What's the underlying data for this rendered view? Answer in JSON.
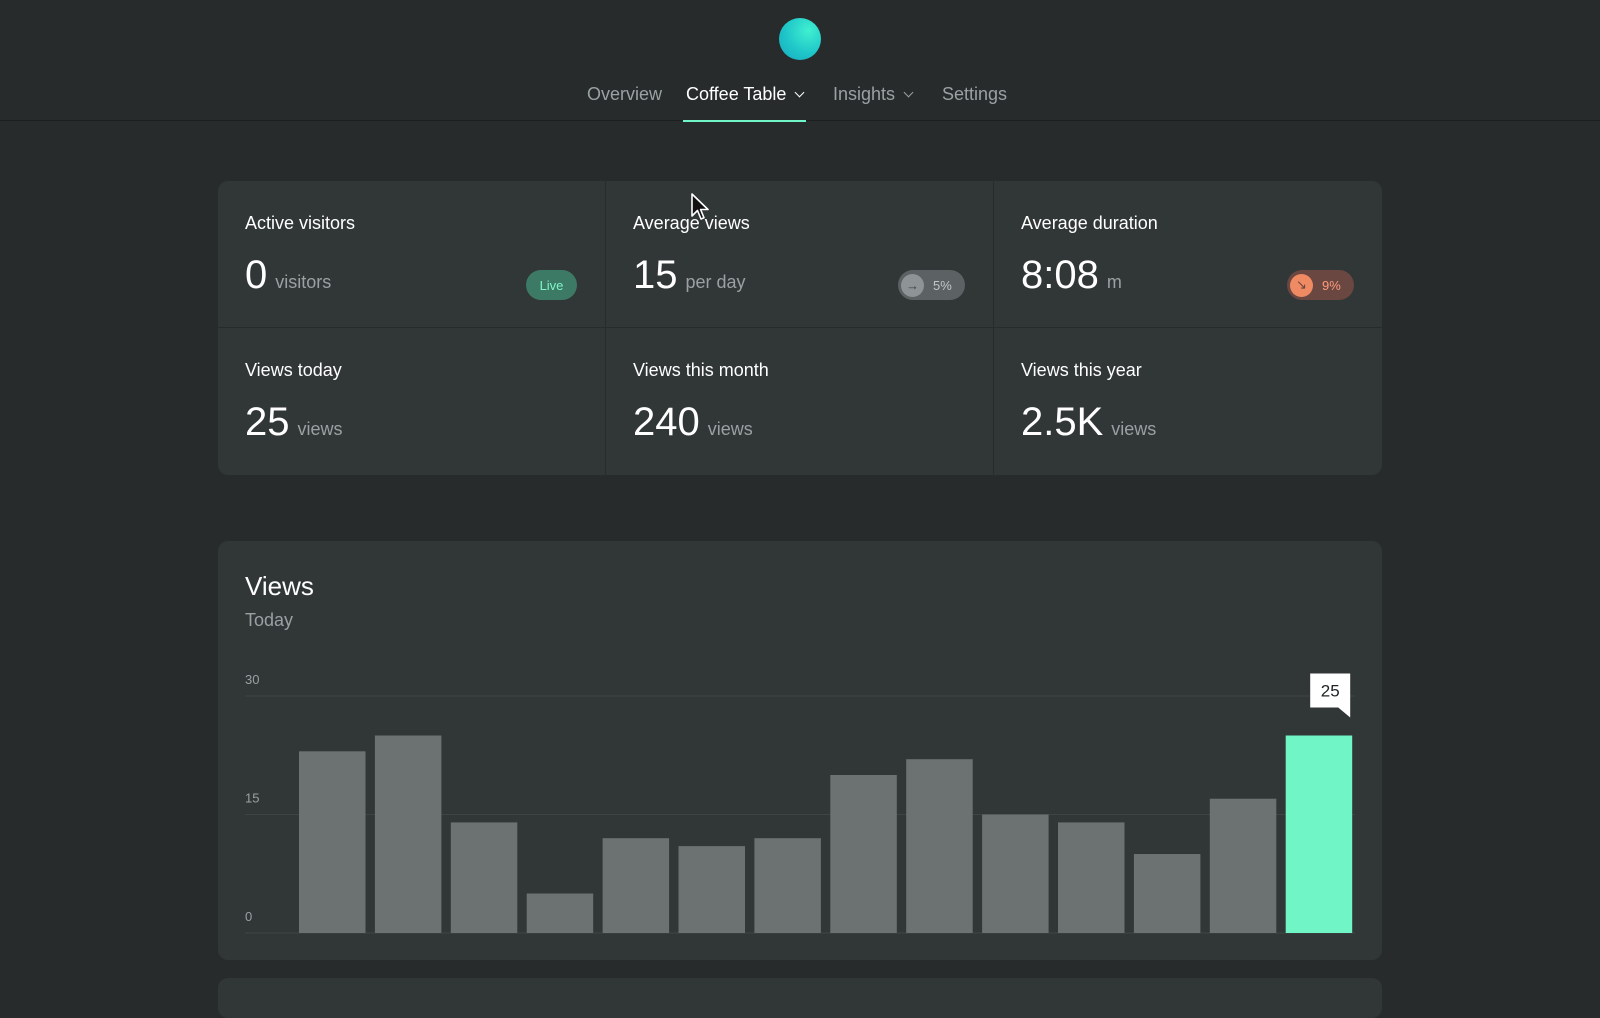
{
  "nav": {
    "items": [
      {
        "label": "Overview"
      },
      {
        "label": "Coffee Table"
      },
      {
        "label": "Insights"
      },
      {
        "label": "Settings"
      }
    ],
    "active": "Coffee Table"
  },
  "stats": [
    {
      "label": "Active visitors",
      "value": "0",
      "unit": "visitors",
      "badge": "Live"
    },
    {
      "label": "Average views",
      "value": "15",
      "unit": "per day",
      "badge": "5%",
      "badge_icon": "arrow-right-icon"
    },
    {
      "label": "Average duration",
      "value": "8:08",
      "unit": "m",
      "badge": "9%",
      "badge_icon": "arrow-down-right-icon"
    },
    {
      "label": "Views today",
      "value": "25",
      "unit": "views"
    },
    {
      "label": "Views this month",
      "value": "240",
      "unit": "views"
    },
    {
      "label": "Views this year",
      "value": "2.5K",
      "unit": "views"
    }
  ],
  "colors": {
    "accent": "#6ff5c6",
    "bar": "#6c7172",
    "background": "#272b2c",
    "card": "#313637"
  },
  "chart_data": {
    "type": "bar",
    "title": "Views",
    "subtitle": "Today",
    "y_ticks": [
      "30",
      "15",
      "0"
    ],
    "ylim": [
      0,
      30
    ],
    "values": [
      23,
      25,
      14,
      5,
      12,
      11,
      12,
      20,
      22,
      15,
      14,
      10,
      17,
      25
    ],
    "highlight_index": 13,
    "tooltip": "25",
    "grid": true
  }
}
